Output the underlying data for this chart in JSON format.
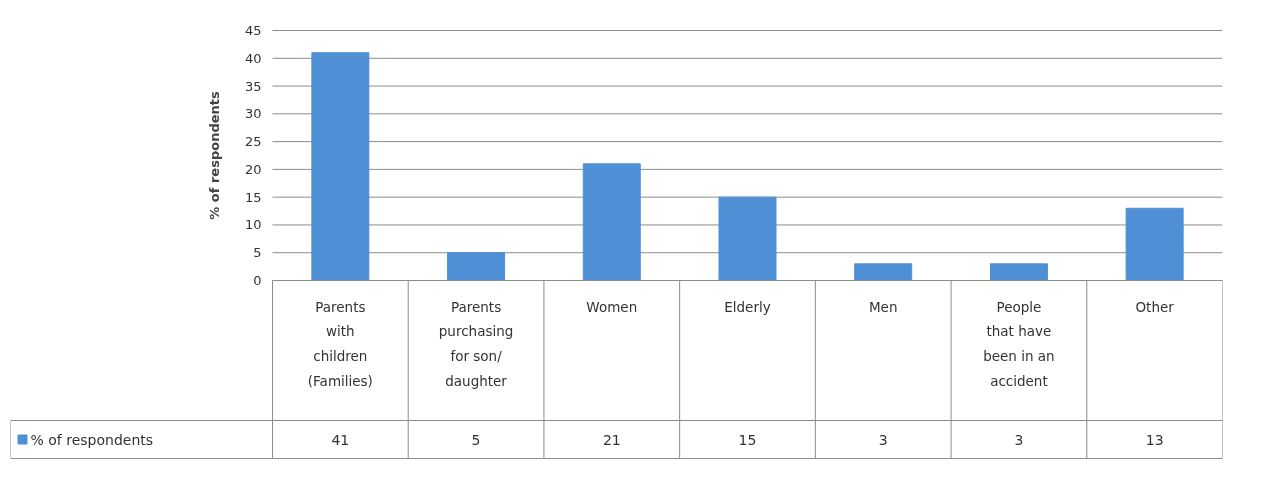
{
  "chart_data": {
    "type": "bar",
    "ylabel": "% of respondents",
    "categories": [
      "Parents with children (Families)",
      "Parents purchasing for son/ daughter",
      "Women",
      "Elderly",
      "Men",
      "People that have been in an accident",
      "Other"
    ],
    "series": [
      {
        "name": "% of respondents",
        "color": "#4f8fd6",
        "values": [
          41,
          5,
          21,
          15,
          3,
          3,
          13
        ]
      }
    ],
    "ylim": [
      0,
      45
    ],
    "yticks": [
      0,
      5,
      10,
      15,
      20,
      25,
      30,
      35,
      40,
      45
    ],
    "grid": "y",
    "legend": "bottom",
    "data_labels": true
  }
}
